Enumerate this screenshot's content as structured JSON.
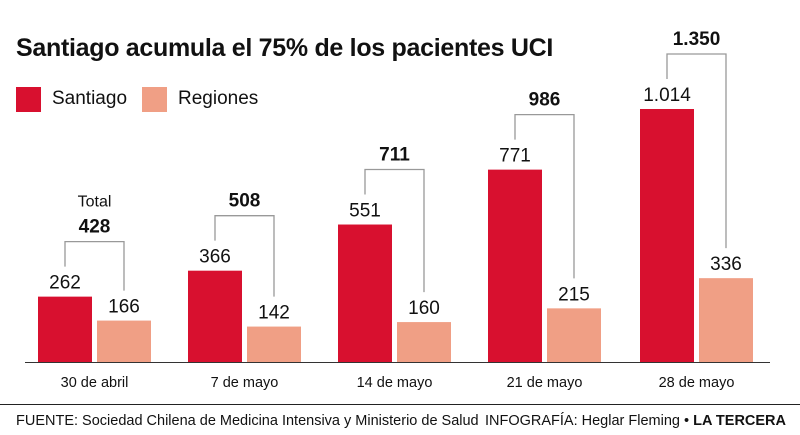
{
  "colors": {
    "santiago": "#d8102f",
    "regiones": "#f09f85",
    "bracket": "#999999",
    "text": "#111111"
  },
  "chart_data": {
    "type": "bar",
    "title": "Santiago acumula el 75% de los pacientes UCI",
    "legend_position": "top-left",
    "grid": false,
    "categories": [
      "30 de abril",
      "7 de mayo",
      "14 de mayo",
      "21 de mayo",
      "28 de mayo"
    ],
    "series": [
      {
        "name": "Santiago",
        "values": [
          262,
          366,
          551,
          771,
          1014
        ],
        "labels": [
          "262",
          "366",
          "551",
          "771",
          "1.014"
        ]
      },
      {
        "name": "Regiones",
        "values": [
          166,
          142,
          160,
          215,
          336
        ],
        "labels": [
          "166",
          "142",
          "160",
          "215",
          "336"
        ]
      }
    ],
    "totals": [
      428,
      508,
      711,
      986,
      1350
    ],
    "total_labels": [
      "428",
      "508",
      "711",
      "986",
      "1.350"
    ],
    "total_caption": "Total",
    "ylim": [
      0,
      1014
    ]
  },
  "footer": {
    "source": "FUENTE: Sociedad Chilena de Medicina Intensiva y Ministerio de Salud",
    "credit_prefix": "INFOGRAFÍA: Heglar Fleming • ",
    "credit_brand": "LA TERCERA"
  }
}
